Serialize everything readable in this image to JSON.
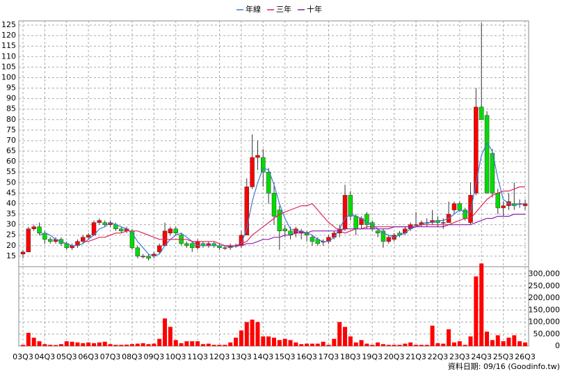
{
  "chart_data": {
    "type": "candlestick",
    "legend_position": "top",
    "footnote": "資料日期: 09/16  (Goodinfo.tw)",
    "categories": [
      "03Q3",
      null,
      null,
      null,
      "04Q3",
      null,
      null,
      null,
      "05Q3",
      null,
      null,
      null,
      "06Q3",
      null,
      null,
      null,
      "07Q3",
      null,
      null,
      null,
      "08Q3",
      null,
      null,
      null,
      "09Q3",
      null,
      null,
      null,
      "10Q3",
      null,
      null,
      null,
      "11Q3",
      null,
      null,
      null,
      "12Q3",
      null,
      null,
      null,
      "13Q3",
      null,
      null,
      null,
      "14Q3",
      null,
      null,
      null,
      "15Q3",
      null,
      null,
      null,
      "16Q3",
      null,
      null,
      null,
      "17Q3",
      null,
      null,
      null,
      "18Q3",
      null,
      null,
      null,
      "19Q3",
      null,
      null,
      null,
      "20Q3",
      null,
      null,
      null,
      "21Q3",
      null,
      null,
      null,
      "22Q3",
      null,
      null,
      null,
      "23Q3",
      null,
      null,
      null,
      "24Q3",
      null,
      null,
      null,
      "25Q3",
      null,
      null,
      null,
      "26Q3"
    ],
    "open": [
      16,
      17,
      28,
      29,
      26,
      23,
      22,
      23,
      21,
      19,
      20,
      22,
      24,
      25,
      31,
      31,
      30,
      30,
      28,
      27,
      27,
      19,
      15,
      15,
      15,
      17,
      20,
      26,
      28,
      25,
      21,
      21,
      19,
      21,
      20,
      21,
      20,
      19,
      19,
      20,
      20,
      25,
      48,
      62,
      62,
      55,
      45,
      37,
      28,
      27,
      26,
      26,
      26,
      24,
      23,
      22,
      22,
      24,
      26,
      28,
      44,
      34,
      30,
      35,
      31,
      27,
      27,
      22,
      23,
      26,
      26,
      28,
      30,
      30,
      31,
      31,
      32,
      31,
      31,
      37,
      40,
      37,
      31,
      45,
      86,
      82,
      64,
      45,
      38,
      39,
      40,
      40,
      39
    ],
    "high": [
      18,
      29,
      30,
      31,
      27,
      24,
      24,
      24,
      22,
      21,
      23,
      25,
      26,
      32,
      33,
      32,
      32,
      31,
      29,
      29,
      28,
      20,
      16,
      16,
      17,
      21,
      31,
      29,
      29,
      26,
      22,
      22,
      23,
      22,
      22,
      22,
      21,
      20,
      21,
      21,
      27,
      52,
      73,
      70,
      66,
      57,
      50,
      39,
      30,
      29,
      29,
      28,
      27,
      25,
      24,
      23,
      25,
      27,
      30,
      49,
      46,
      35,
      34,
      36,
      32,
      28,
      28,
      25,
      26,
      27,
      29,
      31,
      36,
      32,
      33,
      37,
      34,
      33,
      41,
      41,
      41,
      38,
      50,
      95,
      126,
      84,
      66,
      47,
      41,
      45,
      50,
      42,
      42
    ],
    "low": [
      14,
      17,
      27,
      25,
      21,
      21,
      21,
      20,
      18,
      18,
      19,
      21,
      23,
      25,
      30,
      29,
      29,
      27,
      26,
      26,
      18,
      14,
      14,
      13,
      14,
      16,
      20,
      25,
      25,
      20,
      19,
      17,
      18,
      19,
      19,
      19,
      18,
      18,
      18,
      19,
      19,
      25,
      47,
      56,
      48,
      40,
      30,
      18,
      24,
      23,
      24,
      23,
      22,
      20,
      20,
      20,
      21,
      23,
      24,
      27,
      32,
      25,
      28,
      28,
      27,
      24,
      19,
      21,
      22,
      24,
      25,
      27,
      29,
      29,
      29,
      30,
      29,
      28,
      31,
      35,
      36,
      32,
      30,
      44,
      80,
      45,
      43,
      35,
      34,
      37,
      37,
      38,
      37
    ],
    "close": [
      17,
      28,
      29,
      26,
      23,
      22,
      23,
      21,
      19,
      20,
      22,
      24,
      25,
      31,
      32,
      30,
      31,
      28,
      27,
      28,
      19,
      15,
      15,
      14,
      16,
      20,
      27,
      28,
      26,
      21,
      20,
      19,
      22,
      20,
      21,
      20,
      19,
      19,
      20,
      20,
      25,
      48,
      62,
      63,
      55,
      45,
      34,
      27,
      27,
      25,
      28,
      27,
      25,
      22,
      21,
      22,
      24,
      26,
      28,
      44,
      34,
      28,
      33,
      30,
      28,
      26,
      22,
      24,
      25,
      25,
      28,
      30,
      30,
      31,
      31,
      32,
      31,
      31,
      35,
      40,
      37,
      33,
      44,
      86,
      80,
      45,
      45,
      38,
      39,
      41,
      39,
      40,
      40
    ],
    "up_color": "#ff0000",
    "down_color": "#00dd00",
    "series": [
      {
        "name": "年線",
        "color": "#3a7bd5",
        "values": [
          null,
          null,
          null,
          25,
          26,
          25,
          23,
          22,
          21,
          20,
          20,
          21,
          23,
          25,
          28,
          29,
          31,
          30,
          29,
          28,
          26,
          22,
          19,
          16,
          15,
          16,
          20,
          23,
          25,
          26,
          24,
          22,
          20,
          20,
          20,
          20,
          20,
          20,
          19,
          20,
          21,
          28,
          41,
          50,
          57,
          56,
          49,
          40,
          33,
          28,
          27,
          27,
          26,
          25,
          23,
          22,
          22,
          24,
          28,
          33,
          35,
          34,
          33,
          31,
          30,
          28,
          26,
          25,
          24,
          25,
          26,
          28,
          29,
          30,
          31,
          31,
          32,
          32,
          33,
          35,
          37,
          36,
          36,
          50,
          63,
          69,
          65,
          52,
          42,
          40,
          39,
          40,
          40
        ]
      },
      {
        "name": "三年",
        "color": "#e0215a",
        "values": [
          null,
          null,
          null,
          null,
          null,
          null,
          null,
          null,
          null,
          null,
          null,
          22,
          22,
          23,
          24,
          24,
          25,
          26,
          26,
          27,
          27,
          27,
          26,
          25,
          24,
          23,
          23,
          23,
          23,
          23,
          23,
          22,
          22,
          22,
          22,
          22,
          21,
          20,
          20,
          20,
          21,
          22,
          25,
          27,
          29,
          31,
          33,
          35,
          36,
          37,
          38,
          39,
          39,
          40,
          37,
          34,
          31,
          29,
          27,
          26,
          27,
          28,
          28,
          29,
          29,
          29,
          29,
          29,
          29,
          29,
          29,
          29,
          29,
          30,
          30,
          30,
          30,
          30,
          30,
          31,
          32,
          33,
          33,
          36,
          39,
          42,
          44,
          45,
          46,
          46,
          47,
          48,
          48
        ]
      },
      {
        "name": "十年",
        "color": "#8a1fb0",
        "values": [
          null,
          null,
          null,
          null,
          null,
          null,
          null,
          null,
          null,
          null,
          null,
          null,
          null,
          null,
          null,
          null,
          null,
          null,
          null,
          null,
          null,
          null,
          null,
          null,
          null,
          null,
          null,
          null,
          null,
          null,
          null,
          null,
          null,
          null,
          null,
          null,
          null,
          null,
          null,
          20,
          20,
          21,
          21,
          22,
          23,
          23,
          24,
          24,
          25,
          25,
          26,
          26,
          26,
          27,
          27,
          27,
          27,
          27,
          27,
          28,
          28,
          28,
          28,
          28,
          28,
          28,
          28,
          28,
          29,
          29,
          29,
          29,
          29,
          29,
          29,
          29,
          29,
          29,
          30,
          30,
          30,
          30,
          30,
          31,
          32,
          33,
          33,
          34,
          34,
          34,
          35,
          35,
          35
        ]
      }
    ],
    "ylim": [
      10,
      127
    ],
    "yticks": [
      15,
      20,
      25,
      30,
      35,
      40,
      45,
      50,
      55,
      60,
      65,
      70,
      75,
      80,
      85,
      90,
      95,
      100,
      105,
      110,
      115,
      120,
      125
    ],
    "grid": true,
    "volume": {
      "color": "#ff0000",
      "values": [
        5000,
        55000,
        35000,
        20000,
        8000,
        5000,
        4000,
        8000,
        20000,
        18000,
        15000,
        12000,
        15000,
        12000,
        15000,
        18000,
        8000,
        5000,
        5000,
        6000,
        8000,
        10000,
        12000,
        8000,
        10000,
        30000,
        115000,
        80000,
        25000,
        12000,
        20000,
        20000,
        20000,
        8000,
        10000,
        5000,
        5000,
        5000,
        15000,
        35000,
        65000,
        100000,
        110000,
        100000,
        40000,
        40000,
        35000,
        25000,
        30000,
        25000,
        15000,
        8000,
        10000,
        10000,
        10000,
        18000,
        5000,
        30000,
        100000,
        80000,
        40000,
        15000,
        25000,
        10000,
        5000,
        15000,
        8000,
        5000,
        5000,
        5000,
        10000,
        15000,
        5000,
        5000,
        5000,
        85000,
        12000,
        10000,
        70000,
        15000,
        20000,
        5000,
        40000,
        290000,
        344000,
        60000,
        25000,
        45000,
        20000,
        35000,
        45000,
        20000,
        15000
      ],
      "ylim": [
        0,
        345000
      ],
      "yticks": [
        0,
        {
          "value": 50000,
          "label": "50,000"
        },
        {
          "value": 100000,
          "label": "100,000"
        },
        {
          "value": 150000,
          "label": "150,000"
        },
        {
          "value": 200000,
          "label": "200,000"
        },
        {
          "value": 250000,
          "label": "250,000"
        },
        {
          "value": 300000,
          "label": "300,000"
        }
      ]
    }
  }
}
